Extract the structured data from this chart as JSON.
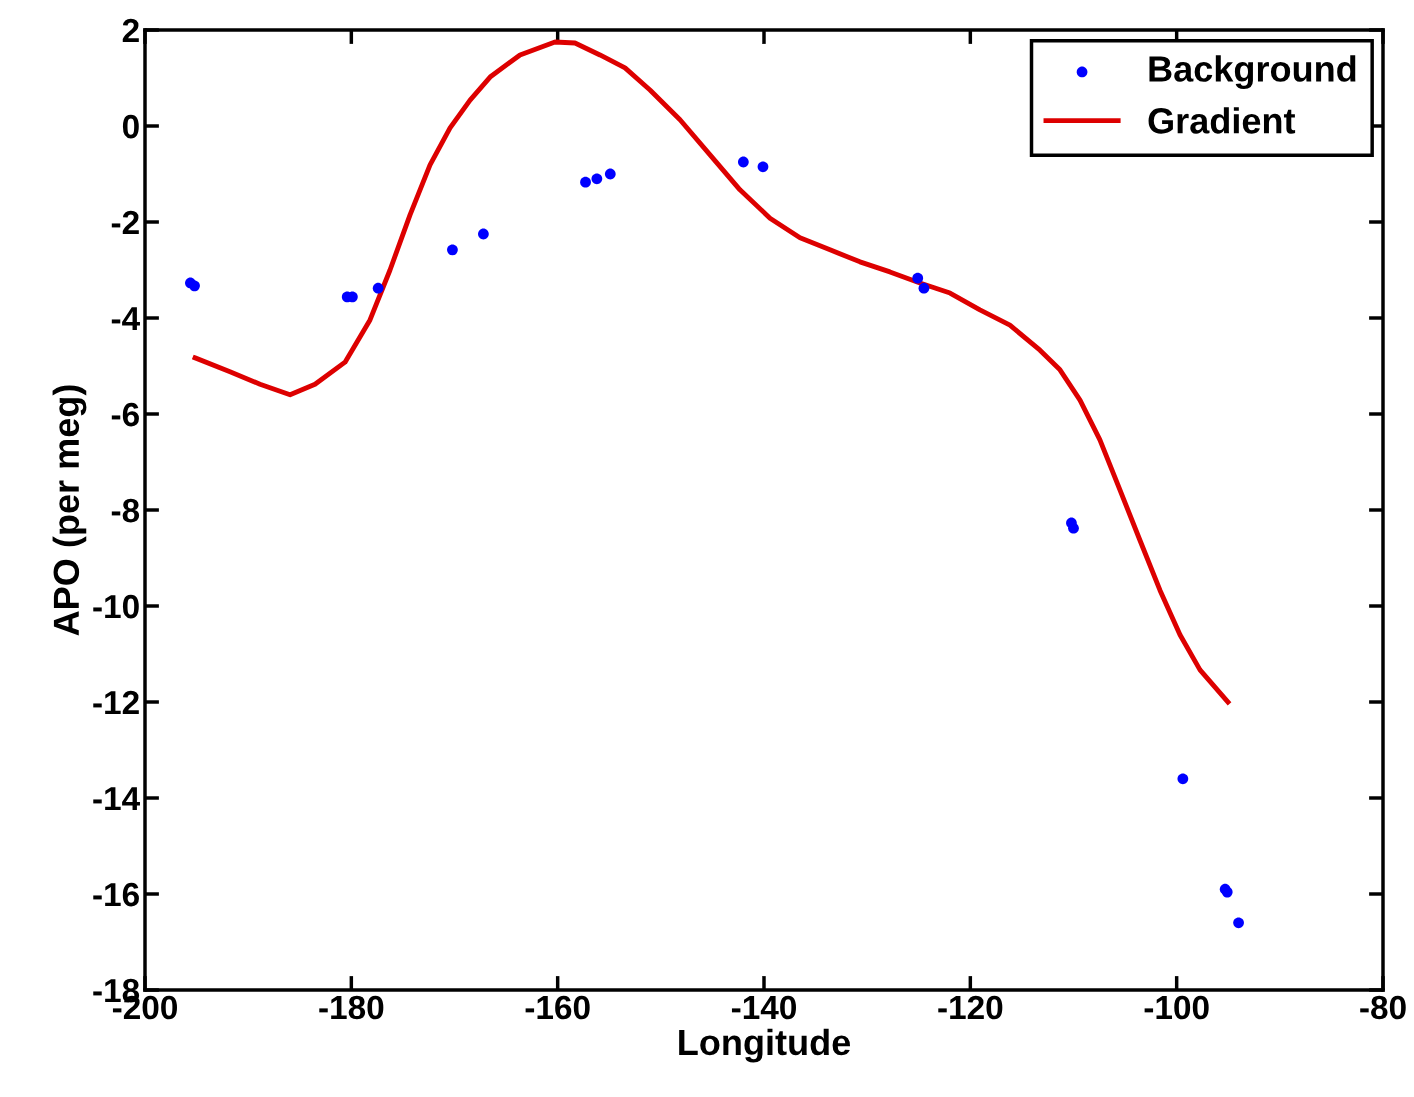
{
  "chart_data": {
    "type": "scatter",
    "xlabel": "Longitude",
    "ylabel": "APO (per meg)",
    "xlim": [
      -200,
      -80
    ],
    "xticks": [
      -200,
      -180,
      -160,
      -140,
      -120,
      -100,
      -80
    ],
    "ylim": [
      -18,
      2
    ],
    "yticks": [
      -18,
      -16,
      -14,
      -12,
      -10,
      -8,
      -6,
      -4,
      -2,
      0,
      2
    ],
    "grid": false,
    "legend": "top right",
    "series": [
      {
        "name": "Background",
        "color": "#0000ff",
        "marker": "circle",
        "x": [
          -195.6,
          -195.2,
          -180.4,
          -179.9,
          -177.4,
          -170.2,
          -167.2,
          -157.3,
          -156.2,
          -154.9,
          -142.0,
          -140.1,
          -125.1,
          -124.5,
          -110.2,
          -110.0,
          -99.4,
          -95.3,
          -95.1,
          -94.0
        ],
        "values": [
          -3.27,
          -3.33,
          -3.56,
          -3.56,
          -3.38,
          -2.58,
          -2.25,
          -1.17,
          -1.1,
          -1.0,
          -0.75,
          -0.85,
          -3.17,
          -3.38,
          -8.27,
          -8.38,
          -13.6,
          -15.9,
          -15.96,
          -16.6
        ]
      },
      {
        "name": "Gradient",
        "type": "line",
        "color": "#dd0000",
        "line_style": "solid",
        "marker": "none",
        "x": [
          -195.15,
          -191.76,
          -188.85,
          -185.94,
          -183.52,
          -180.61,
          -178.19,
          -176.25,
          -174.31,
          -172.37,
          -170.43,
          -168.49,
          -166.55,
          -163.65,
          -160.26,
          -158.32,
          -155.9,
          -153.47,
          -151.05,
          -148.14,
          -145.23,
          -142.33,
          -139.42,
          -136.51,
          -133.6,
          -130.7,
          -127.79,
          -124.88,
          -121.97,
          -119.07,
          -116.16,
          -113.25,
          -111.31,
          -109.37,
          -107.44,
          -105.5,
          -103.56,
          -101.62,
          -99.68,
          -97.74,
          -95.03
        ],
        "values": [
          -4.83,
          -5.12,
          -5.38,
          -5.6,
          -5.38,
          -4.92,
          -4.04,
          -3.0,
          -1.85,
          -0.81,
          -0.04,
          0.54,
          1.02,
          1.48,
          1.75,
          1.73,
          1.48,
          1.21,
          0.75,
          0.13,
          -0.6,
          -1.33,
          -1.92,
          -2.33,
          -2.58,
          -2.83,
          -3.04,
          -3.27,
          -3.48,
          -3.83,
          -4.15,
          -4.67,
          -5.08,
          -5.71,
          -6.54,
          -7.58,
          -8.63,
          -9.67,
          -10.6,
          -11.33,
          -12.0
        ]
      }
    ]
  }
}
